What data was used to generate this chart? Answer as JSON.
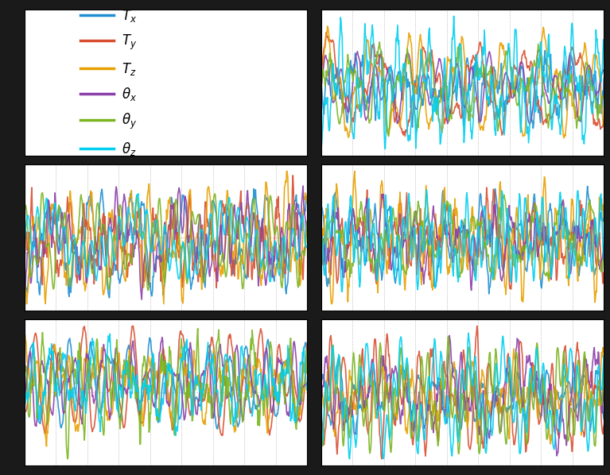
{
  "colors": [
    "#1f8fd1",
    "#d94e2f",
    "#e8a000",
    "#8b3fa8",
    "#7ab520",
    "#00cfef"
  ],
  "labels": [
    "$T_x$",
    "$T_y$",
    "$T_z$",
    "$\\theta_x$",
    "$\\theta_y$",
    "$\\theta_z$"
  ],
  "n_points": 500,
  "seeds": [
    101,
    202,
    303,
    404,
    505
  ],
  "figure_bg": "#1a1a1a",
  "panel_bg": "#ffffff",
  "grid_color": "#aaaaaa",
  "grid_style": ":",
  "linewidth": 1.2,
  "figsize": [
    7.67,
    5.98
  ],
  "dpi": 100,
  "legend_fontsize": 12
}
